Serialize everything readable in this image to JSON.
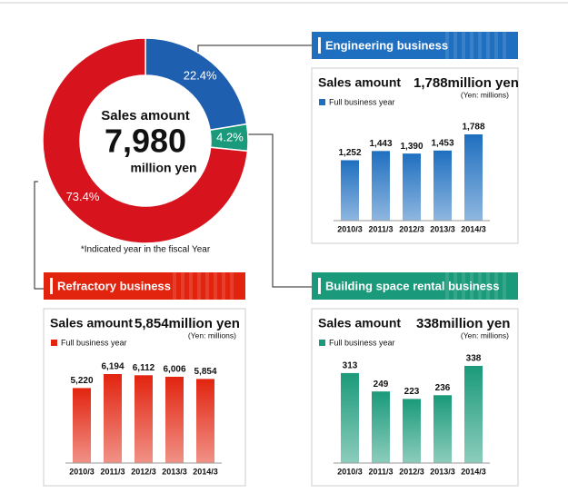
{
  "chart_data": [
    {
      "type": "pie",
      "center_title": "Sales amount",
      "center_value": "7,980",
      "center_unit": "million yen",
      "values": [
        22.4,
        4.2,
        73.4
      ],
      "value_labels": [
        "22.4%",
        "4.2%",
        "73.4%"
      ],
      "colors": [
        "#1f5fb0",
        "#1a9a7a",
        "#d7141e"
      ],
      "note": "*Indicated year in the fiscal Year"
    },
    {
      "type": "bar",
      "title": "Engineering business",
      "subtitle": "Sales amount",
      "total": "1,788million yen",
      "unit": "(Yen: millions)",
      "categories": [
        "2010/3",
        "2011/3",
        "2012/3",
        "2013/3",
        "2014/3"
      ],
      "series": [
        {
          "name": "Full business year",
          "color": "#1f6fc0",
          "values": [
            1252,
            1443,
            1390,
            1453,
            1788
          ],
          "value_labels": [
            "1,252",
            "1,443",
            "1,390",
            "1,453",
            "1,788"
          ]
        }
      ]
    },
    {
      "type": "bar",
      "title": "Refractory business",
      "subtitle": "Sales amount",
      "total": "5,854million yen",
      "unit": "(Yen: millions)",
      "categories": [
        "2010/3",
        "2011/3",
        "2012/3",
        "2013/3",
        "2014/3"
      ],
      "series": [
        {
          "name": "Full business year",
          "color": "#e2240f",
          "values": [
            5220,
            6194,
            6112,
            6006,
            5854
          ],
          "value_labels": [
            "5,220",
            "6,194",
            "6,112",
            "6,006",
            "5,854"
          ]
        }
      ]
    },
    {
      "type": "bar",
      "title": "Building space rental business",
      "subtitle": "Sales amount",
      "total": "338million yen",
      "unit": "(Yen: millions)",
      "categories": [
        "2010/3",
        "2011/3",
        "2012/3",
        "2013/3",
        "2014/3"
      ],
      "series": [
        {
          "name": "Full business year",
          "color": "#1a9a7a",
          "values": [
            313,
            249,
            223,
            236,
            338
          ]
        }
      ]
    }
  ]
}
